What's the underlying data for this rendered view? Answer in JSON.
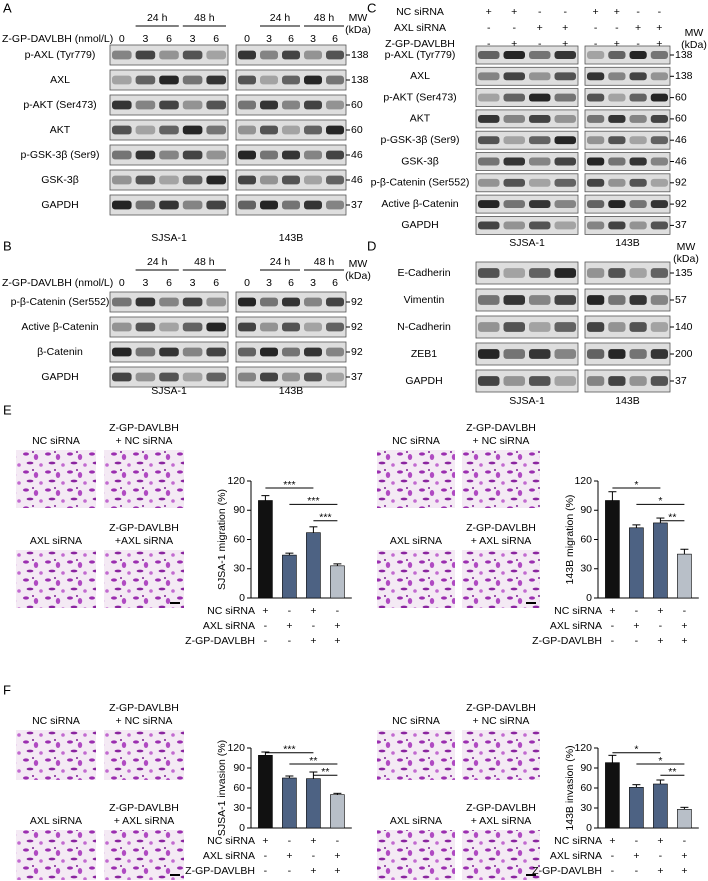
{
  "figure": {
    "A": {
      "label": "A",
      "times": [
        "24 h",
        "48 h"
      ],
      "treatment": "Z-GP-DAVLBH (nmol/L)",
      "doses": [
        0,
        3,
        6,
        3,
        6
      ],
      "mw": [
        "MW",
        "(kDa)"
      ],
      "cells": [
        "SJSA-1",
        "143B"
      ],
      "rows": [
        {
          "name": "p-AXL (Tyr779)",
          "mw": 138
        },
        {
          "name": "AXL",
          "mw": 138
        },
        {
          "name": "p-AKT (Ser473)",
          "mw": 60
        },
        {
          "name": "AKT",
          "mw": 60
        },
        {
          "name": "p-GSK-3β (Ser9)",
          "mw": 46
        },
        {
          "name": "GSK-3β",
          "mw": 46
        },
        {
          "name": "GAPDH",
          "mw": 37
        }
      ]
    },
    "B": {
      "label": "B",
      "times": [
        "24 h",
        "48 h"
      ],
      "treatment": "Z-GP-DAVLBH (nmol/L)",
      "doses": [
        0,
        3,
        6,
        3,
        6
      ],
      "mw": [
        "MW",
        "(kDa)"
      ],
      "cells": [
        "SJSA-1",
        "143B"
      ],
      "rows": [
        {
          "name": "p-β-Catenin (Ser552)",
          "mw": 92
        },
        {
          "name": "Active β-Catenin",
          "mw": 92
        },
        {
          "name": "β-Catenin",
          "mw": 92
        },
        {
          "name": "GAPDH",
          "mw": 37
        }
      ]
    },
    "C": {
      "label": "C",
      "conditions": [
        {
          "name": "NC siRNA",
          "signs": [
            "+",
            "+",
            "-",
            "-"
          ]
        },
        {
          "name": "AXL siRNA",
          "signs": [
            "-",
            "-",
            "+",
            "+"
          ]
        },
        {
          "name": "Z-GP-DAVLBH",
          "signs": [
            "-",
            "+",
            "-",
            "+"
          ]
        }
      ],
      "mw": [
        "MW",
        "(kDa)"
      ],
      "cells": [
        "SJSA-1",
        "143B"
      ],
      "rows": [
        {
          "name": "p-AXL (Tyr779)",
          "mw": 138
        },
        {
          "name": "AXL",
          "mw": 138
        },
        {
          "name": "p-AKT (Ser473)",
          "mw": 60
        },
        {
          "name": "AKT",
          "mw": 60
        },
        {
          "name": "p-GSK-3β (Ser9)",
          "mw": 46
        },
        {
          "name": "GSK-3β",
          "mw": 46
        },
        {
          "name": "p-β-Catenin (Ser552)",
          "mw": 92
        },
        {
          "name": "Active β-Catenin",
          "mw": 92
        },
        {
          "name": "GAPDH",
          "mw": 37
        }
      ]
    },
    "D": {
      "label": "D",
      "mw": [
        "MW",
        "(kDa)"
      ],
      "cells": [
        "SJSA-1",
        "143B"
      ],
      "rows": [
        {
          "name": "E-Cadherin",
          "mw": 135
        },
        {
          "name": "Vimentin",
          "mw": 57
        },
        {
          "name": "N-Cadherin",
          "mw": 140
        },
        {
          "name": "ZEB1",
          "mw": 200
        },
        {
          "name": "GAPDH",
          "mw": 37
        }
      ]
    },
    "E": {
      "label": "E"
    },
    "F": {
      "label": "F"
    }
  },
  "chart_data": [
    {
      "type": "bar",
      "y_label": "SJSA-1 migration (%)",
      "values": [
        100,
        44,
        67,
        33
      ],
      "errors": [
        5,
        2,
        6,
        2
      ],
      "colors": [
        "#111111",
        "#4d6283",
        "#4d6283",
        "#b8bfc8"
      ],
      "ylim": [
        0,
        120
      ],
      "yticks": [
        0,
        30,
        60,
        90,
        120
      ],
      "conditions": [
        {
          "name": "NC siRNA",
          "signs": [
            "+",
            "-",
            "+",
            "-"
          ]
        },
        {
          "name": "AXL siRNA",
          "signs": [
            "-",
            "+",
            "-",
            "+"
          ]
        },
        {
          "name": "Z-GP-DAVLBH",
          "signs": [
            "-",
            "-",
            "+",
            "+"
          ]
        }
      ],
      "significance": [
        {
          "pair": [
            0,
            2
          ],
          "label": "***"
        },
        {
          "pair": [
            1,
            3
          ],
          "label": "***"
        },
        {
          "pair": [
            2,
            3
          ],
          "label": "***"
        }
      ],
      "images": [
        [
          "NC siRNA"
        ],
        [
          "Z-GP-DAVLBH",
          "+ NC siRNA"
        ],
        [
          "AXL siRNA"
        ],
        [
          "Z-GP-DAVLBH",
          "+AXL siRNA"
        ]
      ]
    },
    {
      "type": "bar",
      "y_label": "143B migration (%)",
      "values": [
        100,
        72,
        77,
        45
      ],
      "errors": [
        9,
        3,
        5,
        5
      ],
      "colors": [
        "#111111",
        "#4d6283",
        "#4d6283",
        "#b8bfc8"
      ],
      "ylim": [
        0,
        120
      ],
      "yticks": [
        0,
        30,
        60,
        90,
        120
      ],
      "conditions": [
        {
          "name": "NC siRNA",
          "signs": [
            "+",
            "-",
            "+",
            "-"
          ]
        },
        {
          "name": "AXL siRNA",
          "signs": [
            "-",
            "+",
            "-",
            "+"
          ]
        },
        {
          "name": "Z-GP-DAVLBH",
          "signs": [
            "-",
            "-",
            "+",
            "+"
          ]
        }
      ],
      "significance": [
        {
          "pair": [
            0,
            2
          ],
          "label": "*"
        },
        {
          "pair": [
            1,
            3
          ],
          "label": "*"
        },
        {
          "pair": [
            2,
            3
          ],
          "label": "**"
        }
      ],
      "images": [
        [
          "NC siRNA"
        ],
        [
          "Z-GP-DAVLBH",
          "+ NC siRNA"
        ],
        [
          "AXL siRNA"
        ],
        [
          "Z-GP-DAVLBH",
          "+ AXL siRNA"
        ]
      ]
    },
    {
      "type": "bar",
      "y_label": "SJSA-1 invasion (%)",
      "values": [
        109,
        75,
        74,
        50
      ],
      "errors": [
        5,
        3,
        10,
        2
      ],
      "colors": [
        "#111111",
        "#4d6283",
        "#4d6283",
        "#b8bfc8"
      ],
      "ylim": [
        0,
        120
      ],
      "yticks": [
        0,
        30,
        60,
        90,
        120
      ],
      "conditions": [
        {
          "name": "NC siRNA",
          "signs": [
            "+",
            "-",
            "+",
            "-"
          ]
        },
        {
          "name": "AXL siRNA",
          "signs": [
            "-",
            "+",
            "-",
            "+"
          ]
        },
        {
          "name": "Z-GP-DAVLBH",
          "signs": [
            "-",
            "-",
            "+",
            "+"
          ]
        }
      ],
      "significance": [
        {
          "pair": [
            0,
            2
          ],
          "label": "***"
        },
        {
          "pair": [
            1,
            3
          ],
          "label": "**"
        },
        {
          "pair": [
            2,
            3
          ],
          "label": "**"
        }
      ],
      "images": [
        [
          "NC siRNA"
        ],
        [
          "Z-GP-DAVLBH",
          "+ NC siRNA"
        ],
        [
          "AXL siRNA"
        ],
        [
          "Z-GP-DAVLBH",
          "+ AXL siRNA"
        ]
      ]
    },
    {
      "type": "bar",
      "y_label": "143B invasion (%)",
      "values": [
        98,
        61,
        66,
        28
      ],
      "errors": [
        11,
        4,
        6,
        3
      ],
      "colors": [
        "#111111",
        "#4d6283",
        "#4d6283",
        "#b8bfc8"
      ],
      "ylim": [
        0,
        120
      ],
      "yticks": [
        0,
        30,
        60,
        90,
        120
      ],
      "conditions": [
        {
          "name": "NC siRNA",
          "signs": [
            "+",
            "-",
            "+",
            "-"
          ]
        },
        {
          "name": "AXL siRNA",
          "signs": [
            "-",
            "+",
            "-",
            "+"
          ]
        },
        {
          "name": "Z-GP-DAVLBH",
          "signs": [
            "-",
            "-",
            "+",
            "+"
          ]
        }
      ],
      "significance": [
        {
          "pair": [
            0,
            2
          ],
          "label": "*"
        },
        {
          "pair": [
            1,
            3
          ],
          "label": "*"
        },
        {
          "pair": [
            2,
            3
          ],
          "label": "**"
        }
      ],
      "images": [
        [
          "NC siRNA"
        ],
        [
          "Z-GP-DAVLBH",
          "+ NC siRNA"
        ],
        [
          "AXL siRNA"
        ],
        [
          "Z-GP-DAVLBH",
          "+ AXL siRNA"
        ]
      ]
    }
  ]
}
